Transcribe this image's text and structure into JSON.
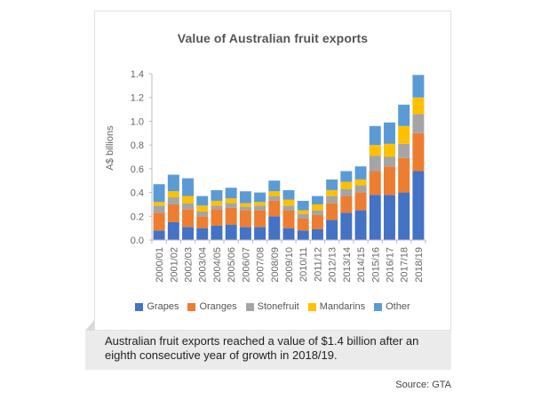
{
  "chart_data": {
    "type": "bar",
    "stacked": true,
    "title": "Value of Australian fruit exports",
    "xlabel": "",
    "ylabel": "A$ billions",
    "ylim": [
      0,
      1.4
    ],
    "yticks": [
      "0.0",
      "0.2",
      "0.4",
      "0.6",
      "0.8",
      "1.0",
      "1.2",
      "1.4"
    ],
    "ytick_values": [
      0,
      0.2,
      0.4,
      0.6,
      0.8,
      1.0,
      1.2,
      1.4
    ],
    "grid": false,
    "legend_position": "bottom",
    "categories": [
      "2000/01",
      "2001/02",
      "2002/03",
      "2003/04",
      "2004/05",
      "2005/06",
      "2006/07",
      "2007/08",
      "2008/09",
      "2009/10",
      "2010/11",
      "2011/12",
      "2012/13",
      "2013/14",
      "2014/15",
      "2015/16",
      "2016/17",
      "2017/18",
      "2018/19"
    ],
    "series": [
      {
        "name": "Grapes",
        "color": "#4472c4",
        "values": [
          0.08,
          0.15,
          0.11,
          0.1,
          0.12,
          0.13,
          0.11,
          0.11,
          0.2,
          0.1,
          0.08,
          0.09,
          0.17,
          0.23,
          0.25,
          0.38,
          0.38,
          0.4,
          0.58
        ]
      },
      {
        "name": "Oranges",
        "color": "#ed7d31",
        "values": [
          0.15,
          0.15,
          0.15,
          0.1,
          0.14,
          0.14,
          0.14,
          0.14,
          0.13,
          0.15,
          0.1,
          0.12,
          0.14,
          0.14,
          0.15,
          0.2,
          0.24,
          0.29,
          0.32
        ]
      },
      {
        "name": "Stonefruit",
        "color": "#a5a5a5",
        "values": [
          0.06,
          0.06,
          0.05,
          0.04,
          0.03,
          0.04,
          0.03,
          0.04,
          0.04,
          0.04,
          0.04,
          0.04,
          0.06,
          0.06,
          0.06,
          0.13,
          0.08,
          0.12,
          0.16
        ]
      },
      {
        "name": "Mandarins",
        "color": "#ffc000",
        "values": [
          0.03,
          0.05,
          0.06,
          0.05,
          0.04,
          0.04,
          0.03,
          0.03,
          0.04,
          0.05,
          0.03,
          0.05,
          0.05,
          0.06,
          0.05,
          0.09,
          0.11,
          0.15,
          0.14
        ]
      },
      {
        "name": "Other",
        "color": "#5b9bd5",
        "values": [
          0.15,
          0.14,
          0.15,
          0.08,
          0.09,
          0.09,
          0.1,
          0.08,
          0.09,
          0.08,
          0.08,
          0.07,
          0.09,
          0.09,
          0.11,
          0.16,
          0.18,
          0.18,
          0.19
        ]
      }
    ]
  },
  "caption": {
    "text": "Australian fruit exports reached a value of $1.4 billion after an eighth consecutive year of growth in 2018/19."
  },
  "source": {
    "text": "Source: GTA"
  }
}
